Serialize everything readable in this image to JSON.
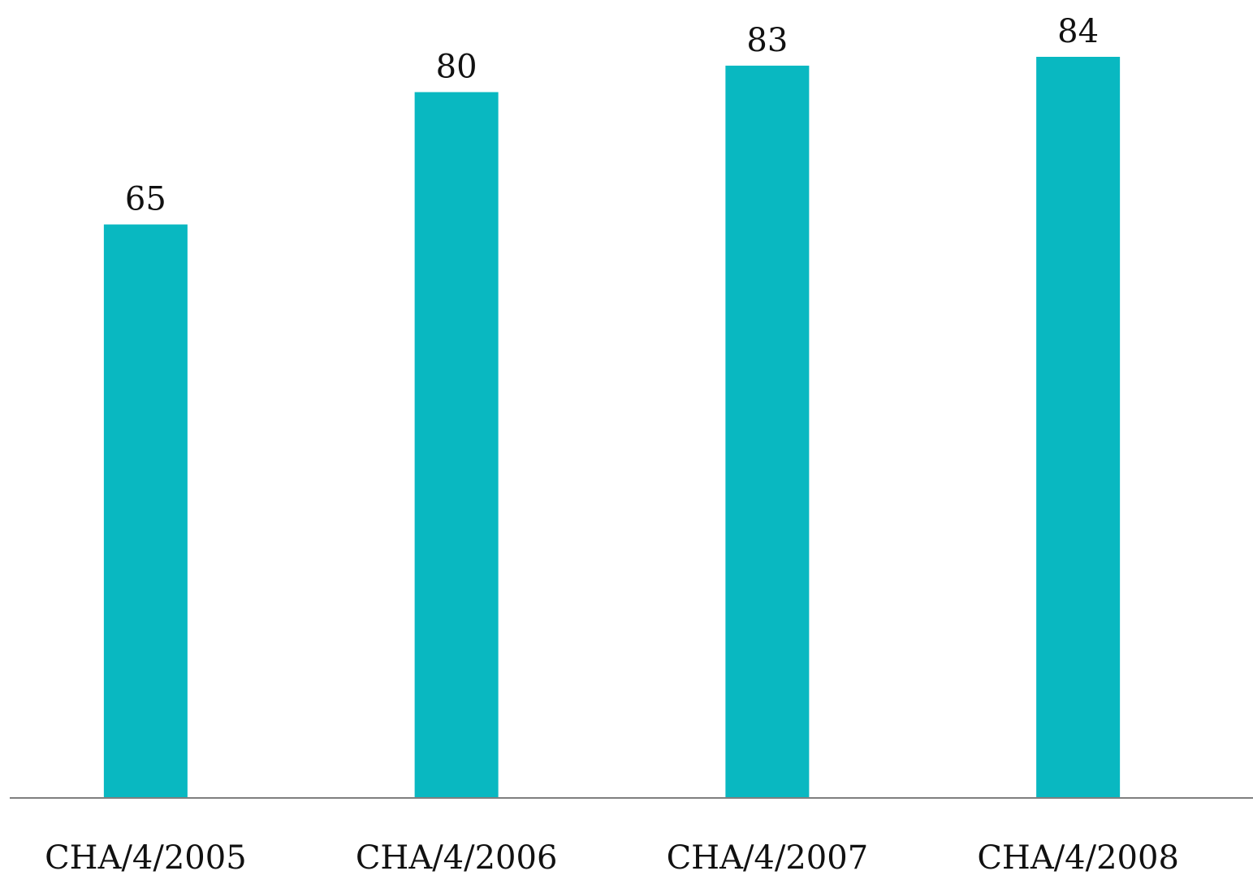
{
  "chart_data": {
    "type": "bar",
    "categories": [
      "CHA/4/2005",
      "CHA/4/2006",
      "CHA/4/2007",
      "CHA/4/2008"
    ],
    "values": [
      65,
      80,
      83,
      84
    ],
    "data_labels": [
      "65",
      "80",
      "83",
      "84"
    ],
    "title": "",
    "xlabel": "",
    "ylabel": "",
    "ylim": [
      0,
      84
    ],
    "grid": false,
    "bar_color": "#09B8C1",
    "axis_color": "#7F7F7F"
  }
}
